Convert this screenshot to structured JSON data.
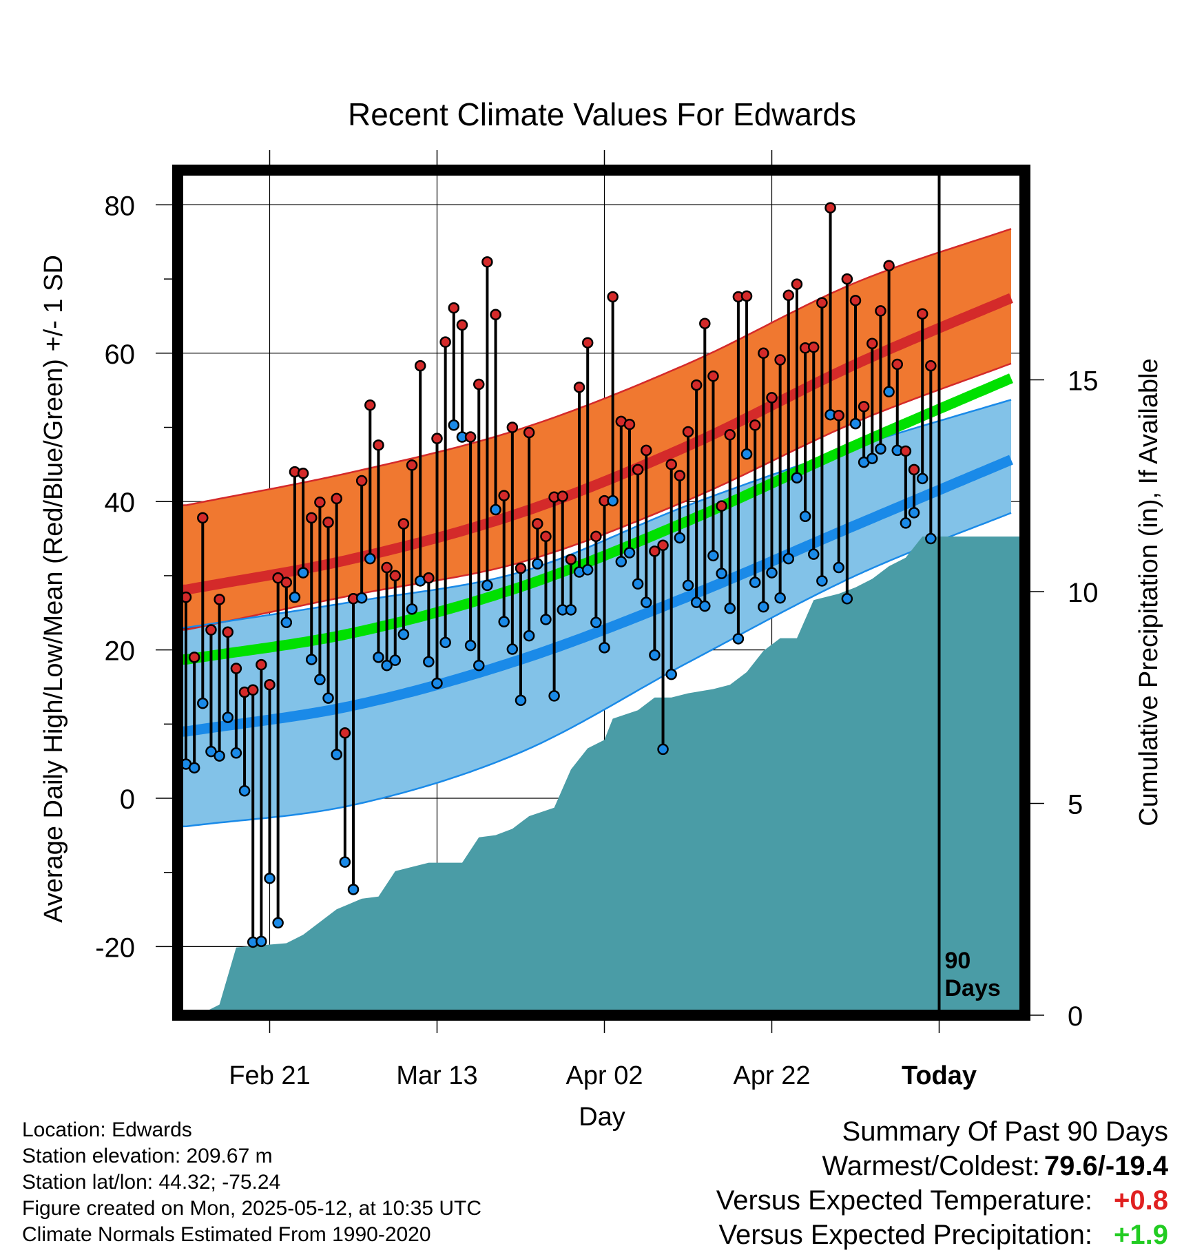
{
  "chart_data": {
    "type": "line",
    "title": "Recent Climate Values For Edwards",
    "xlabel": "Day",
    "ylabel_left": "Average Daily High/Low/Mean (Red/Blue/Green) +/- 1 SD",
    "ylabel_right": "Cumulative Precipitation (in), If Available",
    "x_tick_labels": [
      "Feb 21",
      "Mar 13",
      "Apr 02",
      "Apr 22",
      "Today"
    ],
    "x_tick_days": [
      10,
      30,
      50,
      70,
      90
    ],
    "x_range_days": [
      0,
      100
    ],
    "ylim_temp": [
      -29,
      86
    ],
    "yticks_temp": [
      -20,
      0,
      20,
      40,
      60,
      80
    ],
    "ylim_precip": [
      0,
      30
    ],
    "yticks_precip": [
      0,
      5,
      10,
      15
    ],
    "today_marker_label": "90\nDays",
    "colors": {
      "high_band": "#f07830",
      "high_mean": "#d42a2a",
      "high_band_edge": "#d42a2a",
      "low_band": "#82c2e8",
      "low_mean": "#1a8ae8",
      "low_band_edge": "#1a8ae8",
      "mean_line": "#00e000",
      "overlap": "#8b1010",
      "precip_fill": "#4a9ca6",
      "high_point": "#d42a2a",
      "low_point": "#1a8ae8"
    },
    "normals": {
      "day": [
        0,
        20,
        40,
        60,
        80,
        100
      ],
      "high_mean": [
        28.1,
        32.3,
        38.5,
        47.5,
        58.5,
        68.1
      ],
      "high_sd_upper": [
        39.5,
        44.0,
        49.8,
        58.6,
        69.5,
        77.3
      ],
      "high_sd_lower": [
        22.7,
        27.4,
        31.8,
        40.2,
        50.7,
        59.2
      ],
      "low_mean": [
        9.0,
        12.5,
        18.7,
        27.2,
        36.8,
        46.3
      ],
      "low_sd_upper": [
        23.0,
        26.5,
        30.5,
        39.5,
        47.4,
        54.2
      ],
      "low_sd_lower": [
        -3.8,
        -0.9,
        6.2,
        18.3,
        30.0,
        39.1
      ],
      "mean": [
        18.7,
        22.3,
        28.5,
        37.4,
        47.6,
        57.3
      ]
    },
    "daily_high": [
      27.1,
      19.0,
      37.8,
      22.7,
      26.8,
      22.4,
      17.5,
      14.3,
      14.6,
      18.0,
      15.3,
      29.7,
      29.1,
      44.0,
      43.8,
      37.8,
      39.9,
      37.2,
      40.4,
      8.8,
      26.9,
      42.8,
      53.0,
      47.6,
      31.1,
      30.0,
      37.0,
      44.9,
      58.3,
      29.7,
      48.5,
      61.5,
      66.1,
      63.8,
      48.7,
      55.8,
      72.3,
      65.2,
      40.8,
      50.0,
      31.0,
      49.3,
      37.0,
      35.3,
      40.6,
      40.7,
      32.2,
      55.4,
      61.4,
      35.3,
      40.1,
      67.6,
      50.8,
      50.4,
      44.3,
      46.9,
      33.3,
      34.1,
      45.0,
      43.5,
      49.4,
      55.7,
      64.0,
      56.9,
      39.4,
      49.0,
      67.6,
      67.7,
      50.3,
      60.0,
      54.0,
      59.1,
      67.8,
      69.3,
      60.7,
      60.8,
      66.8,
      79.6,
      51.6,
      70.0,
      67.1,
      52.8,
      61.3,
      65.7,
      71.8,
      58.5,
      46.8,
      44.3,
      65.3,
      58.3
    ],
    "daily_low": [
      4.6,
      4.1,
      12.8,
      6.3,
      5.7,
      10.9,
      6.1,
      1.0,
      -19.4,
      -19.3,
      -10.8,
      -16.8,
      23.7,
      27.1,
      30.4,
      18.7,
      16.0,
      13.5,
      5.9,
      -8.6,
      -12.3,
      27.0,
      32.3,
      19.0,
      17.9,
      18.6,
      22.1,
      25.5,
      29.3,
      18.4,
      15.5,
      21.0,
      50.3,
      48.7,
      20.6,
      17.9,
      28.7,
      38.9,
      23.8,
      20.1,
      13.2,
      21.9,
      31.6,
      24.1,
      13.8,
      25.4,
      25.4,
      30.5,
      30.8,
      23.7,
      20.3,
      40.1,
      31.9,
      33.1,
      28.9,
      26.4,
      19.3,
      6.6,
      16.7,
      35.1,
      28.7,
      26.4,
      25.9,
      32.7,
      30.3,
      25.6,
      21.5,
      46.4,
      29.1,
      25.8,
      30.4,
      27.0,
      32.3,
      43.2,
      38.0,
      32.9,
      29.3,
      51.7,
      31.1,
      26.9,
      50.5,
      45.3,
      45.8,
      47.1,
      54.8,
      46.9,
      37.1,
      38.5,
      43.1,
      35.0
    ],
    "cumulative_precip": [
      [
        0,
        0.05
      ],
      [
        2,
        0.05
      ],
      [
        4,
        0.25
      ],
      [
        6,
        1.6
      ],
      [
        9,
        1.65
      ],
      [
        12,
        1.7
      ],
      [
        14,
        1.9
      ],
      [
        16,
        2.2
      ],
      [
        18,
        2.5
      ],
      [
        21,
        2.75
      ],
      [
        23,
        2.8
      ],
      [
        25,
        3.4
      ],
      [
        27,
        3.5
      ],
      [
        29,
        3.6
      ],
      [
        33,
        3.6
      ],
      [
        35,
        4.2
      ],
      [
        37,
        4.25
      ],
      [
        39,
        4.4
      ],
      [
        41,
        4.7
      ],
      [
        44,
        4.9
      ],
      [
        46,
        5.8
      ],
      [
        48,
        6.3
      ],
      [
        50,
        6.5
      ],
      [
        51,
        7.0
      ],
      [
        54,
        7.2
      ],
      [
        56,
        7.5
      ],
      [
        58,
        7.5
      ],
      [
        60,
        7.6
      ],
      [
        63,
        7.7
      ],
      [
        65,
        7.8
      ],
      [
        67,
        8.1
      ],
      [
        69,
        8.6
      ],
      [
        71,
        8.9
      ],
      [
        73,
        8.9
      ],
      [
        75,
        9.8
      ],
      [
        78,
        9.95
      ],
      [
        80,
        10.1
      ],
      [
        82,
        10.3
      ],
      [
        84,
        10.6
      ],
      [
        86,
        10.8
      ],
      [
        88,
        11.3
      ],
      [
        90,
        11.3
      ],
      [
        100,
        11.3
      ]
    ]
  },
  "footer_info": {
    "location": "Location: Edwards",
    "elevation": "Station elevation: 209.67 m",
    "latlon": "Station lat/lon: 44.32; -75.24",
    "created": "Figure created on Mon, 2025-05-12, at 10:35 UTC",
    "normals": "Climate Normals Estimated From 1990-2020"
  },
  "summary": {
    "title": "Summary Of Past 90 Days",
    "warm_cold_label": "Warmest/Coldest:",
    "warm_cold_value": "79.6/-19.4",
    "temp_label": "Versus Expected Temperature:",
    "temp_value": "+0.8",
    "temp_color": "#e02020",
    "precip_label": "Versus Expected Precipitation:",
    "precip_value": "+1.9",
    "precip_color": "#22cc22"
  }
}
